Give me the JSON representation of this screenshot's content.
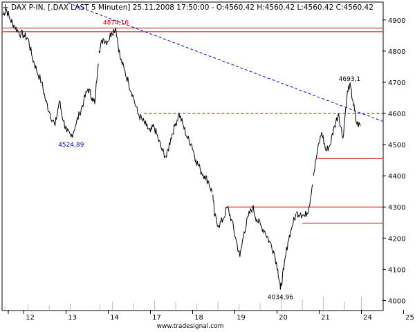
{
  "header": {
    "title": "DAX P-IN. [.DAX LAST 5 Minuten] 25.11.2008 17:50:00 - O:4560.42 H:4560.42 L:4560.42 C:4560.42",
    "watermark": "www.tradesignal.com"
  },
  "chart_data": {
    "type": "line",
    "instrument": "DAX P-IN.",
    "interval": "5 Minuten",
    "date_labels": [
      "12",
      "13",
      "14",
      "17",
      "18",
      "19",
      "20",
      "21",
      "24",
      "25"
    ],
    "y_ticks": [
      4000,
      4100,
      4200,
      4300,
      4400,
      4500,
      4600,
      4700,
      4800,
      4900
    ],
    "ylim": [
      3970,
      4955
    ],
    "grid": false,
    "series": [
      {
        "color": "#000000",
        "points": [
          [
            0.0,
            4915
          ],
          [
            0.08,
            4935
          ],
          [
            0.18,
            4900
          ],
          [
            0.28,
            4880
          ],
          [
            0.38,
            4860
          ],
          [
            0.5,
            4850
          ],
          [
            0.6,
            4840
          ],
          [
            0.7,
            4780
          ],
          [
            0.8,
            4740
          ],
          [
            0.92,
            4700
          ],
          [
            1.02,
            4640
          ],
          [
            1.12,
            4600
          ],
          [
            1.24,
            4560
          ],
          [
            1.34,
            4640
          ],
          [
            1.44,
            4575
          ],
          [
            1.52,
            4540
          ],
          [
            1.62,
            4525
          ],
          [
            1.72,
            4560
          ],
          [
            1.82,
            4600
          ],
          [
            1.92,
            4640
          ],
          [
            2.02,
            4680
          ],
          [
            2.12,
            4650
          ],
          [
            2.18,
            4630
          ],
          [
            2.28,
            4800
          ],
          [
            2.38,
            4840
          ],
          [
            2.48,
            4830
          ],
          [
            2.58,
            4860
          ],
          [
            2.68,
            4874.16
          ],
          [
            2.78,
            4780
          ],
          [
            2.88,
            4740
          ],
          [
            2.98,
            4700
          ],
          [
            3.08,
            4660
          ],
          [
            3.2,
            4600
          ],
          [
            3.3,
            4580
          ],
          [
            3.4,
            4560
          ],
          [
            3.5,
            4540
          ],
          [
            3.58,
            4560
          ],
          [
            3.68,
            4520
          ],
          [
            3.78,
            4480
          ],
          [
            3.88,
            4460
          ],
          [
            3.98,
            4520
          ],
          [
            4.08,
            4560
          ],
          [
            4.18,
            4600
          ],
          [
            4.28,
            4560
          ],
          [
            4.38,
            4520
          ],
          [
            4.48,
            4500
          ],
          [
            4.58,
            4450
          ],
          [
            4.68,
            4420
          ],
          [
            4.78,
            4400
          ],
          [
            4.88,
            4380
          ],
          [
            4.98,
            4340
          ],
          [
            5.02,
            4270
          ],
          [
            5.12,
            4240
          ],
          [
            5.22,
            4260
          ],
          [
            5.32,
            4300
          ],
          [
            5.42,
            4260
          ],
          [
            5.52,
            4200
          ],
          [
            5.62,
            4140
          ],
          [
            5.72,
            4220
          ],
          [
            5.82,
            4270
          ],
          [
            5.92,
            4300
          ],
          [
            6.02,
            4260
          ],
          [
            6.12,
            4240
          ],
          [
            6.22,
            4220
          ],
          [
            6.32,
            4190
          ],
          [
            6.42,
            4160
          ],
          [
            6.52,
            4100
          ],
          [
            6.58,
            4034.96
          ],
          [
            6.66,
            4100
          ],
          [
            6.76,
            4190
          ],
          [
            6.86,
            4240
          ],
          [
            6.96,
            4280
          ],
          [
            7.06,
            4280
          ],
          [
            7.16,
            4270
          ],
          [
            7.26,
            4300
          ],
          [
            7.36,
            4400
          ],
          [
            7.46,
            4480
          ],
          [
            7.56,
            4540
          ],
          [
            7.66,
            4480
          ],
          [
            7.76,
            4500
          ],
          [
            7.86,
            4560
          ],
          [
            7.96,
            4600
          ],
          [
            8.06,
            4520
          ],
          [
            8.16,
            4660
          ],
          [
            8.22,
            4693.1
          ],
          [
            8.3,
            4640
          ],
          [
            8.38,
            4570
          ],
          [
            8.48,
            4560.42
          ]
        ]
      },
      {
        "color": "#bbbbbb",
        "kind": "volume",
        "points": [
          [
            0.05,
            5
          ],
          [
            0.6,
            8
          ],
          [
            1.1,
            7
          ],
          [
            1.6,
            9
          ],
          [
            2.3,
            8
          ],
          [
            2.6,
            12
          ],
          [
            3.1,
            10
          ],
          [
            3.6,
            14
          ],
          [
            4.1,
            11
          ],
          [
            4.6,
            9
          ],
          [
            5.1,
            12
          ],
          [
            5.6,
            8
          ],
          [
            6.1,
            10
          ],
          [
            6.6,
            22
          ],
          [
            7.1,
            15
          ],
          [
            7.6,
            19
          ],
          [
            8.1,
            12
          ],
          [
            8.5,
            18
          ]
        ]
      }
    ],
    "lines": [
      {
        "kind": "horizontal",
        "value": 4874.16,
        "color": "#cc0000",
        "from": 0,
        "to": 9
      },
      {
        "kind": "horizontal",
        "value": 4862,
        "color": "#cc0000",
        "from": 0,
        "to": 9
      },
      {
        "kind": "horizontal",
        "value": 4600,
        "color": "#cc0000",
        "dashed": true,
        "from": 3.35,
        "to": 9
      },
      {
        "kind": "horizontal",
        "value": 4455,
        "color": "#cc0000",
        "from": 7.45,
        "to": 9
      },
      {
        "kind": "horizontal",
        "value": 4300,
        "color": "#cc0000",
        "from": 5.3,
        "to": 9
      },
      {
        "kind": "horizontal",
        "value": 4248,
        "color": "#cc0000",
        "from": 7.1,
        "to": 9
      },
      {
        "kind": "trend",
        "from": [
          1.55,
          4955
        ],
        "to": [
          9.0,
          4575
        ],
        "color": "#0000cc",
        "dashed": true
      }
    ],
    "annotations": [
      {
        "text": "4874,16",
        "x": 2.68,
        "y": 4874.16,
        "color": "#cc0000",
        "anchor": "above"
      },
      {
        "text": "4524,89",
        "x": 1.62,
        "y": 4524.89,
        "color": "#0000cc",
        "anchor": "below"
      },
      {
        "text": "4034,96",
        "x": 6.58,
        "y": 4034.96,
        "color": "#000000",
        "anchor": "below"
      },
      {
        "text": "4693,1",
        "x": 8.22,
        "y": 4693.1,
        "color": "#000000",
        "anchor": "above"
      }
    ]
  }
}
